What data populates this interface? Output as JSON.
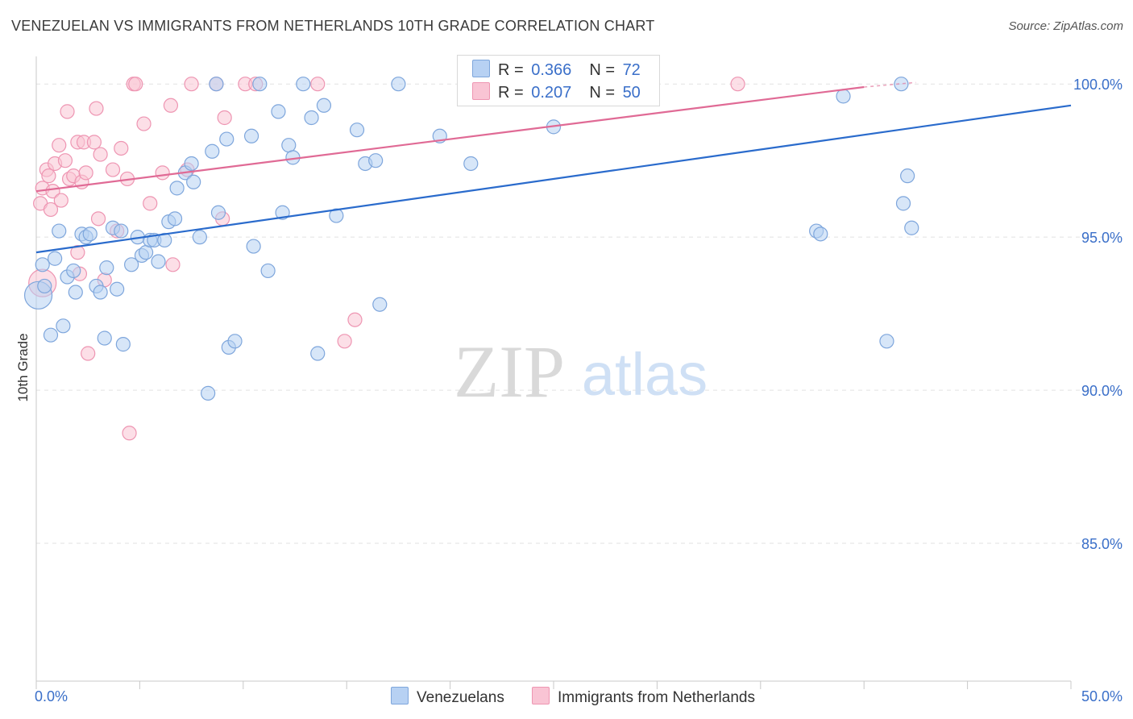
{
  "title": "VENEZUELAN VS IMMIGRANTS FROM NETHERLANDS 10TH GRADE CORRELATION CHART",
  "source": "Source: ZipAtlas.com",
  "watermark": {
    "zip": "ZIP",
    "atlas": "atlas"
  },
  "legend": {
    "r_label": "R =",
    "n_label": "N =",
    "rows": [
      {
        "r": "0.366",
        "n": "72"
      },
      {
        "r": "0.207",
        "n": "50"
      }
    ]
  },
  "colors": {
    "blue_fill": "#b7d1f3",
    "blue_stroke": "#7ea6dc",
    "blue_line": "#2a6bcc",
    "pink_fill": "#f9c4d4",
    "pink_stroke": "#ee95b2",
    "pink_line": "#e06a95",
    "tick_label": "#3a6fc9",
    "grid": "#e2e2e2"
  },
  "chart_data": {
    "type": "scatter",
    "title": "VENEZUELAN VS IMMIGRANTS FROM NETHERLANDS 10TH GRADE CORRELATION CHART",
    "ylabel": "10th Grade",
    "xlabel": "",
    "xlim": [
      0,
      50
    ],
    "ylim": [
      80.5,
      100.9
    ],
    "x_tick_labels": [
      "0.0%",
      "50.0%"
    ],
    "y_ticks": [
      {
        "value": 100,
        "label": "100.0%"
      },
      {
        "value": 95,
        "label": "95.0%"
      },
      {
        "value": 90,
        "label": "90.0%"
      },
      {
        "value": 85,
        "label": "85.0%"
      }
    ],
    "grid": "horizontal dashed",
    "legend_position": "top-center",
    "series": [
      {
        "name": "Venezuelans",
        "color": "#7ea6dc",
        "trend": {
          "x": [
            0,
            50
          ],
          "y": [
            94.5,
            99.3
          ]
        },
        "points": [
          [
            0.1,
            93.1,
            2
          ],
          [
            0.3,
            94.1,
            1
          ],
          [
            0.4,
            93.4,
            1
          ],
          [
            0.7,
            91.8,
            1
          ],
          [
            0.9,
            94.3,
            1
          ],
          [
            1.1,
            95.2,
            1
          ],
          [
            1.3,
            92.1,
            1
          ],
          [
            1.5,
            93.7,
            1
          ],
          [
            1.8,
            93.9,
            1
          ],
          [
            1.9,
            93.2,
            1
          ],
          [
            2.2,
            95.1,
            1
          ],
          [
            2.4,
            95.0,
            1
          ],
          [
            2.6,
            95.1,
            1
          ],
          [
            2.9,
            93.4,
            1
          ],
          [
            3.1,
            93.2,
            1
          ],
          [
            3.3,
            91.7,
            1
          ],
          [
            3.4,
            94.0,
            1
          ],
          [
            3.7,
            95.3,
            1
          ],
          [
            3.9,
            93.3,
            1
          ],
          [
            4.1,
            95.2,
            1
          ],
          [
            4.2,
            91.5,
            1
          ],
          [
            4.6,
            94.1,
            1
          ],
          [
            4.9,
            95.0,
            1
          ],
          [
            5.1,
            94.4,
            1
          ],
          [
            5.3,
            94.5,
            1
          ],
          [
            5.5,
            94.9,
            1
          ],
          [
            5.7,
            94.9,
            1
          ],
          [
            5.9,
            94.2,
            1
          ],
          [
            6.2,
            94.9,
            1
          ],
          [
            6.4,
            95.5,
            1
          ],
          [
            6.7,
            95.6,
            1
          ],
          [
            6.8,
            96.6,
            1
          ],
          [
            7.2,
            97.1,
            1
          ],
          [
            7.5,
            97.4,
            1
          ],
          [
            7.6,
            96.8,
            1
          ],
          [
            7.9,
            95.0,
            1
          ],
          [
            8.3,
            89.9,
            1
          ],
          [
            8.5,
            97.8,
            1
          ],
          [
            8.7,
            100.0,
            1
          ],
          [
            8.8,
            95.8,
            1
          ],
          [
            9.2,
            98.2,
            1
          ],
          [
            9.3,
            91.4,
            1
          ],
          [
            9.6,
            91.6,
            1
          ],
          [
            10.4,
            98.3,
            1
          ],
          [
            10.5,
            94.7,
            1
          ],
          [
            10.8,
            100.0,
            1
          ],
          [
            11.2,
            93.9,
            1
          ],
          [
            11.7,
            99.1,
            1
          ],
          [
            11.9,
            95.8,
            1
          ],
          [
            12.2,
            98.0,
            1
          ],
          [
            12.4,
            97.6,
            1
          ],
          [
            12.9,
            100.0,
            1
          ],
          [
            13.3,
            98.9,
            1
          ],
          [
            13.6,
            91.2,
            1
          ],
          [
            13.9,
            99.3,
            1
          ],
          [
            14.5,
            95.7,
            1
          ],
          [
            15.5,
            98.5,
            1
          ],
          [
            15.9,
            97.4,
            1
          ],
          [
            16.4,
            97.5,
            1
          ],
          [
            16.6,
            92.8,
            1
          ],
          [
            17.5,
            100.0,
            1
          ],
          [
            19.5,
            98.3,
            1
          ],
          [
            21.0,
            97.4,
            1
          ],
          [
            25.0,
            98.6,
            1
          ],
          [
            37.7,
            95.2,
            1
          ],
          [
            37.9,
            95.1,
            1
          ],
          [
            39.0,
            99.6,
            1
          ],
          [
            41.1,
            91.6,
            1
          ],
          [
            41.8,
            100.0,
            1
          ],
          [
            41.9,
            96.1,
            1
          ],
          [
            42.1,
            97.0,
            1
          ],
          [
            42.3,
            95.3,
            1
          ]
        ]
      },
      {
        "name": "Immigrants from Netherlands",
        "color": "#ee95b2",
        "trend": {
          "x": [
            0,
            40
          ],
          "y": [
            96.5,
            99.9
          ],
          "dash_extension_to": [
            42.5,
            100.05
          ]
        },
        "points": [
          [
            0.2,
            96.1,
            1
          ],
          [
            0.3,
            96.6,
            1
          ],
          [
            0.3,
            93.5,
            2
          ],
          [
            0.5,
            97.2,
            1
          ],
          [
            0.6,
            97.0,
            1
          ],
          [
            0.7,
            95.9,
            1
          ],
          [
            0.8,
            96.5,
            1
          ],
          [
            0.9,
            97.4,
            1
          ],
          [
            1.1,
            98.0,
            1
          ],
          [
            1.2,
            96.2,
            1
          ],
          [
            1.4,
            97.5,
            1
          ],
          [
            1.5,
            99.1,
            1
          ],
          [
            1.6,
            96.9,
            1
          ],
          [
            1.8,
            97.0,
            1
          ],
          [
            2.0,
            98.1,
            1
          ],
          [
            2.0,
            94.5,
            1
          ],
          [
            2.1,
            93.8,
            1
          ],
          [
            2.2,
            96.8,
            1
          ],
          [
            2.3,
            98.1,
            1
          ],
          [
            2.4,
            97.1,
            1
          ],
          [
            2.5,
            91.2,
            1
          ],
          [
            2.8,
            98.1,
            1
          ],
          [
            2.9,
            99.2,
            1
          ],
          [
            3.0,
            95.6,
            1
          ],
          [
            3.1,
            97.7,
            1
          ],
          [
            3.3,
            93.6,
            1
          ],
          [
            3.7,
            97.2,
            1
          ],
          [
            3.9,
            95.2,
            1
          ],
          [
            4.1,
            97.9,
            1
          ],
          [
            4.4,
            96.9,
            1
          ],
          [
            4.5,
            88.6,
            1
          ],
          [
            4.7,
            100.0,
            1
          ],
          [
            4.8,
            100.0,
            1
          ],
          [
            5.2,
            98.7,
            1
          ],
          [
            5.5,
            96.1,
            1
          ],
          [
            6.1,
            97.1,
            1
          ],
          [
            6.5,
            99.3,
            1
          ],
          [
            6.6,
            94.1,
            1
          ],
          [
            7.3,
            97.2,
            1
          ],
          [
            7.5,
            100.0,
            1
          ],
          [
            8.7,
            100.0,
            1
          ],
          [
            9.0,
            95.6,
            1
          ],
          [
            9.1,
            98.9,
            1
          ],
          [
            10.1,
            100.0,
            1
          ],
          [
            10.6,
            100.0,
            1
          ],
          [
            13.6,
            100.0,
            1
          ],
          [
            14.9,
            91.6,
            1
          ],
          [
            15.4,
            92.3,
            1
          ],
          [
            27.1,
            100.0,
            1
          ],
          [
            33.9,
            100.0,
            1
          ]
        ]
      }
    ]
  }
}
